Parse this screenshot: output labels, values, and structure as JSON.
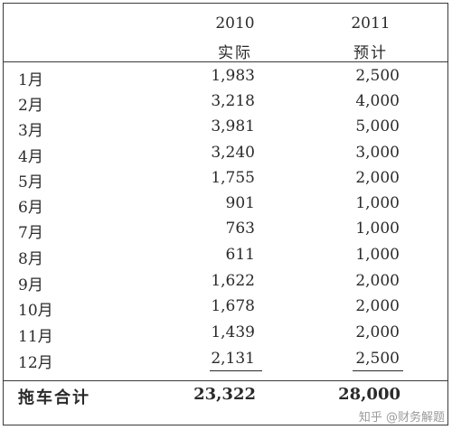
{
  "header": {
    "col_a_year": "2010",
    "col_a_label": "实际",
    "col_b_year": "2011",
    "col_b_label": "预计"
  },
  "rows": [
    {
      "month": "1月",
      "actual": "1,983",
      "forecast": "2,500"
    },
    {
      "month": "2月",
      "actual": "3,218",
      "forecast": "4,000"
    },
    {
      "month": "3月",
      "actual": "3,981",
      "forecast": "5,000"
    },
    {
      "month": "4月",
      "actual": "3,240",
      "forecast": "3,000"
    },
    {
      "month": "5月",
      "actual": "1,755",
      "forecast": "2,000"
    },
    {
      "month": "6月",
      "actual": "901",
      "forecast": "1,000"
    },
    {
      "month": "7月",
      "actual": "763",
      "forecast": "1,000"
    },
    {
      "month": "8月",
      "actual": "611",
      "forecast": "1,000"
    },
    {
      "month": "9月",
      "actual": "1,622",
      "forecast": "2,000"
    },
    {
      "month": "10月",
      "actual": "1,678",
      "forecast": "2,000"
    },
    {
      "month": "11月",
      "actual": "1,439",
      "forecast": "2,000"
    },
    {
      "month": "12月",
      "actual": "2,131",
      "forecast": "2,500"
    }
  ],
  "total": {
    "label": "拖车合计",
    "actual": "23,322",
    "forecast": "28,000"
  },
  "watermark": "知乎 @财务解题"
}
